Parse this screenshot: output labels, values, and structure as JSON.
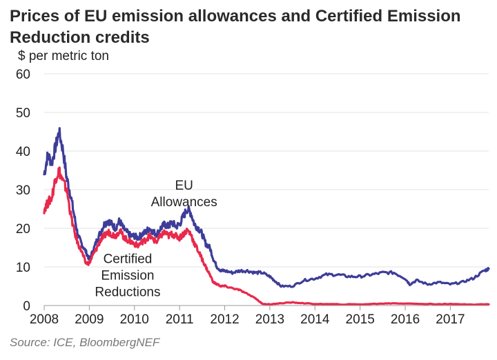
{
  "chart_data": {
    "type": "line",
    "title": "Prices of EU emission allowances and Certified Emission Reduction credits",
    "ylabel": "$ per metric ton",
    "xlabel": "",
    "ylim": [
      0,
      60
    ],
    "xlim": [
      2008,
      2017.85
    ],
    "yticks": [
      0,
      10,
      20,
      30,
      40,
      50,
      60
    ],
    "xticks": [
      2008,
      2009,
      2010,
      2011,
      2012,
      2013,
      2014,
      2015,
      2016,
      2017
    ],
    "grid": "horizontal",
    "legend": "none",
    "series": [
      {
        "name": "EU Allowances",
        "color": "#3d3d99",
        "x": [
          2008.0,
          2008.08,
          2008.17,
          2008.25,
          2008.33,
          2008.42,
          2008.5,
          2008.58,
          2008.67,
          2008.75,
          2008.83,
          2008.92,
          2009.0,
          2009.08,
          2009.17,
          2009.25,
          2009.33,
          2009.42,
          2009.5,
          2009.58,
          2009.67,
          2009.75,
          2009.83,
          2009.92,
          2010.0,
          2010.08,
          2010.17,
          2010.25,
          2010.33,
          2010.42,
          2010.5,
          2010.58,
          2010.67,
          2010.75,
          2010.83,
          2010.92,
          2011.0,
          2011.08,
          2011.17,
          2011.25,
          2011.33,
          2011.42,
          2011.5,
          2011.58,
          2011.67,
          2011.75,
          2011.83,
          2011.92,
          2012.0,
          2012.17,
          2012.33,
          2012.5,
          2012.67,
          2012.83,
          2013.0,
          2013.1,
          2013.25,
          2013.5,
          2013.75,
          2014.0,
          2014.25,
          2014.5,
          2014.75,
          2015.0,
          2015.25,
          2015.5,
          2015.75,
          2016.0,
          2016.1,
          2016.25,
          2016.5,
          2016.75,
          2017.0,
          2017.25,
          2017.5,
          2017.75,
          2017.85
        ],
        "y": [
          34,
          39,
          37,
          41,
          45,
          40,
          33,
          29,
          23,
          18,
          16,
          14,
          12,
          14,
          17,
          19,
          21,
          22,
          21,
          20,
          22,
          20,
          19,
          18,
          18,
          17.5,
          18.5,
          19,
          20,
          19,
          18.5,
          20,
          21,
          20.5,
          21.5,
          20.5,
          21,
          23,
          25,
          24,
          21,
          20,
          18.5,
          16,
          15,
          12,
          10,
          9,
          9,
          8.5,
          9,
          9,
          8.5,
          8.5,
          7.5,
          6.5,
          5,
          5,
          6.5,
          7,
          8,
          8,
          7.5,
          7.5,
          8,
          8.5,
          8.5,
          7,
          5.5,
          6.5,
          5.5,
          6,
          5.5,
          6,
          7,
          9,
          9.5
        ]
      },
      {
        "name": "Certified Emission Reductions",
        "color": "#e8294c",
        "x": [
          2008.0,
          2008.08,
          2008.17,
          2008.25,
          2008.33,
          2008.42,
          2008.5,
          2008.58,
          2008.67,
          2008.75,
          2008.83,
          2008.92,
          2009.0,
          2009.08,
          2009.17,
          2009.25,
          2009.33,
          2009.42,
          2009.5,
          2009.58,
          2009.67,
          2009.75,
          2009.83,
          2009.92,
          2010.0,
          2010.08,
          2010.17,
          2010.25,
          2010.33,
          2010.42,
          2010.5,
          2010.58,
          2010.67,
          2010.75,
          2010.83,
          2010.92,
          2011.0,
          2011.08,
          2011.17,
          2011.25,
          2011.33,
          2011.42,
          2011.5,
          2011.58,
          2011.67,
          2011.75,
          2011.83,
          2011.92,
          2012.0,
          2012.17,
          2012.33,
          2012.5,
          2012.67,
          2012.75,
          2012.83,
          2012.92,
          2013.0,
          2013.25,
          2013.5,
          2013.75,
          2014.0,
          2014.5,
          2015.0,
          2015.5,
          2015.75,
          2016.0,
          2016.5,
          2017.0,
          2017.5,
          2017.85
        ],
        "y": [
          25,
          26.5,
          28,
          33,
          35,
          32,
          30,
          24,
          19,
          16,
          14,
          11,
          11,
          13,
          15,
          17,
          18,
          19,
          18.5,
          18,
          19.5,
          18,
          17,
          16.5,
          16,
          15.5,
          16.5,
          17,
          18,
          17,
          16.5,
          18,
          19,
          18,
          18.5,
          18,
          17.5,
          18.5,
          19.5,
          18.5,
          16,
          14,
          12,
          10,
          8,
          6,
          5.5,
          5,
          5,
          4.5,
          4,
          3,
          2,
          1.2,
          0.5,
          0.3,
          0.3,
          0.6,
          0.8,
          0.6,
          0.4,
          0.3,
          0.3,
          0.5,
          0.6,
          0.5,
          0.4,
          0.35,
          0.3,
          0.3
        ]
      }
    ],
    "annotations": [
      {
        "series": "EU Allowances",
        "lines": [
          "EU",
          "Allowances"
        ],
        "x": 2011.1,
        "y": 30
      },
      {
        "series": "Certified Emission Reductions",
        "lines": [
          "Certified",
          "Emission",
          "Reductions"
        ],
        "x": 2009.85,
        "y": 11
      }
    ],
    "source": "Source: ICE, BloombergNEF"
  }
}
